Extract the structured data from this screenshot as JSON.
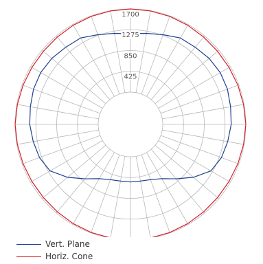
{
  "chart_data": {
    "type": "polar",
    "radial_max": 1700,
    "rings": [
      425,
      850,
      1275,
      1700
    ],
    "ring_labels": [
      "425",
      "850",
      "1275",
      "1700"
    ],
    "spoke_step_deg": 10,
    "center_hole_fraction": 0.28,
    "series": [
      {
        "name": "Vert. Plane",
        "color": "#1f3f8f",
        "angle_deg": [
          0,
          10,
          20,
          30,
          40,
          50,
          60,
          70,
          80,
          90,
          100,
          110,
          120,
          130,
          140,
          150,
          160,
          170,
          180,
          190,
          200,
          210,
          220,
          230,
          240,
          250,
          260,
          270,
          280,
          290,
          300,
          310,
          320,
          330,
          340,
          350,
          360
        ],
        "values": [
          1200,
          1230,
          1290,
          1380,
          1400,
          1440,
          1460,
          1450,
          1420,
          1400,
          1360,
          1320,
          1240,
          1020,
          790,
          620,
          540,
          515,
          515,
          515,
          540,
          620,
          790,
          1020,
          1240,
          1320,
          1360,
          1400,
          1420,
          1450,
          1460,
          1440,
          1400,
          1380,
          1290,
          1230,
          1200
        ]
      },
      {
        "name": "Horiz. Cone",
        "color": "#d81e2a",
        "angle_deg": [
          0,
          10,
          20,
          30,
          40,
          50,
          60,
          70,
          80,
          90,
          100,
          110,
          120,
          130,
          140,
          150,
          160,
          170,
          180,
          190,
          200,
          210,
          220,
          230,
          240,
          250,
          260,
          270,
          280,
          290,
          300,
          310,
          320,
          330,
          340,
          350,
          360
        ],
        "values": [
          1700,
          1695,
          1690,
          1680,
          1670,
          1665,
          1670,
          1680,
          1690,
          1700,
          1690,
          1680,
          1670,
          1665,
          1670,
          1680,
          1690,
          1695,
          1700,
          1695,
          1690,
          1680,
          1670,
          1665,
          1670,
          1680,
          1690,
          1700,
          1690,
          1680,
          1670,
          1665,
          1670,
          1680,
          1690,
          1695,
          1700
        ]
      }
    ],
    "legend_position": "bottom-left"
  }
}
